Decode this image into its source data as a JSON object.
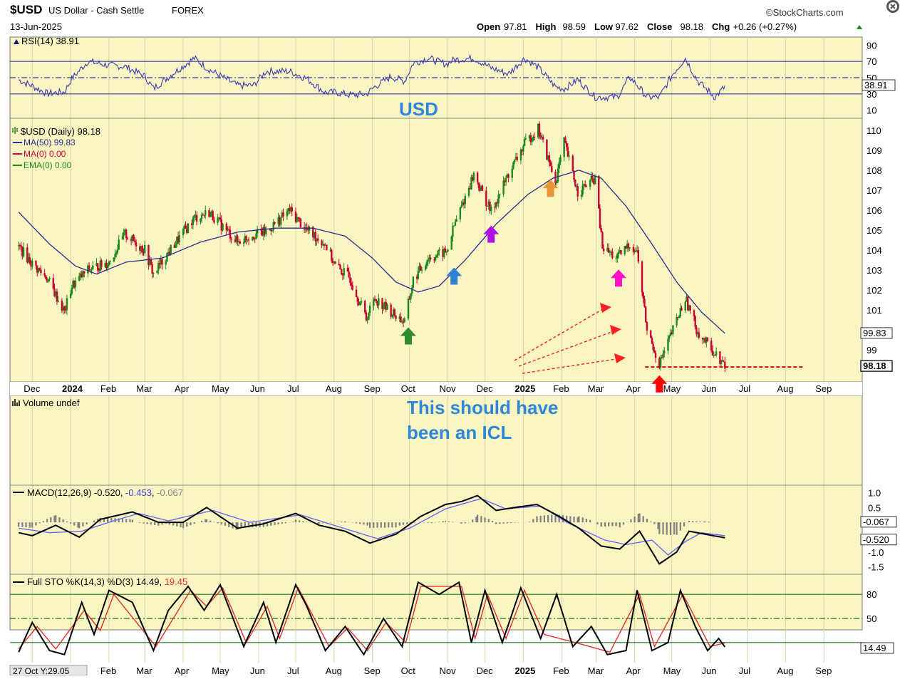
{
  "header": {
    "symbol": "$USD",
    "name": "US Dollar - Cash Settle",
    "exchange": "FOREX",
    "date": "13-Jun-2025",
    "watermark": "©StockCharts.com",
    "ohlc": [
      {
        "label": "Open",
        "value": "97.81"
      },
      {
        "label": "High",
        "value": "98.59"
      },
      {
        "label": "Low",
        "value": "97.62"
      },
      {
        "label": "Close",
        "value": "98.18"
      },
      {
        "label": "Chg",
        "value": "+0.26 (+0.27%)"
      }
    ],
    "close_icon": "close-circle-icon"
  },
  "annotations": {
    "usd_title": "USD",
    "icl_note_line1": "This should have",
    "icl_note_line2": "been an ICL",
    "arrows": [
      {
        "color": "#2e8b2e",
        "direction": "up",
        "date": "2024-09-30",
        "price": 99.7
      },
      {
        "color": "#2f80d0",
        "direction": "up",
        "date": "2024-11-06",
        "price": 102.7
      },
      {
        "color": "#b010e8",
        "direction": "up",
        "date": "2024-12-06",
        "price": 104.8
      },
      {
        "color": "#e8963a",
        "direction": "up",
        "date": "2025-01-23",
        "price": 107.1
      },
      {
        "color": "#ff10c8",
        "direction": "up",
        "date": "2025-03-19",
        "price": 102.6
      },
      {
        "color": "#ff0000",
        "direction": "up",
        "date": "2025-04-21",
        "price": 97.3
      }
    ],
    "support_line": {
      "color": "#dd0000",
      "price": 98.18,
      "from": "2025-04-21",
      "to": "2025-08-15"
    },
    "dashed_arrows_color": "#ff2020"
  },
  "colors": {
    "panel_bg": "#f9f5c3",
    "grid": "#d9d4a8",
    "up_candle": "#1a8a1a",
    "down_candle": "#cc0033",
    "ma_line": "#2b2b8f",
    "rsi_line": "#3a3ab0",
    "macd_line": "#000000",
    "signal_line": "#6060ff",
    "histogram": "#808080",
    "sto_k": "#000000",
    "sto_d": "#e03030",
    "annotation_text": "#2e86d8"
  },
  "chart_data": [
    {
      "type": "line",
      "panel": "rsi",
      "title": "RSI(14)",
      "last_value": "38.91",
      "ylim": [
        0,
        100
      ],
      "ticks": [
        "90",
        "70",
        "50",
        "30",
        "10"
      ],
      "levels": [
        70,
        50,
        30
      ],
      "tag": "38.91"
    },
    {
      "type": "candlestick",
      "panel": "price",
      "title": "$USD (Daily)",
      "last_value": "98.18",
      "ylim": [
        97.4,
        110.6
      ],
      "ticks": [
        "110",
        "109",
        "108",
        "107",
        "106",
        "105",
        "104",
        "103",
        "102",
        "101",
        "99"
      ],
      "legend": [
        {
          "name": "MA(50)",
          "value": "99.83",
          "color": "#2b2b8f"
        },
        {
          "name": "MA(0)",
          "value": "0.00",
          "color": "#cc0033"
        },
        {
          "name": "EMA(0)",
          "value": "0.00",
          "color": "#1a8a1a"
        }
      ],
      "tags": [
        "99.83",
        "98.18"
      ],
      "close_path": [
        [
          "2023-11-20",
          104.2
        ],
        [
          "2023-12-01",
          103.3
        ],
        [
          "2023-12-13",
          102.6
        ],
        [
          "2023-12-27",
          100.9
        ],
        [
          "2024-01-02",
          102.2
        ],
        [
          "2024-01-15",
          103.0
        ],
        [
          "2024-02-01",
          103.4
        ],
        [
          "2024-02-14",
          104.8
        ],
        [
          "2024-03-01",
          104.0
        ],
        [
          "2024-03-08",
          102.8
        ],
        [
          "2024-03-25",
          104.3
        ],
        [
          "2024-04-10",
          105.6
        ],
        [
          "2024-04-22",
          105.9
        ],
        [
          "2024-05-15",
          104.4
        ],
        [
          "2024-05-28",
          104.8
        ],
        [
          "2024-06-07",
          104.9
        ],
        [
          "2024-06-26",
          106.0
        ],
        [
          "2024-07-10",
          105.0
        ],
        [
          "2024-07-25",
          104.3
        ],
        [
          "2024-08-02",
          103.2
        ],
        [
          "2024-08-14",
          102.6
        ],
        [
          "2024-08-27",
          100.6
        ],
        [
          "2024-09-03",
          101.6
        ],
        [
          "2024-09-16",
          100.9
        ],
        [
          "2024-09-27",
          100.4
        ],
        [
          "2024-10-04",
          102.5
        ],
        [
          "2024-10-16",
          103.6
        ],
        [
          "2024-10-31",
          103.9
        ],
        [
          "2024-11-06",
          105.2
        ],
        [
          "2024-11-22",
          107.8
        ],
        [
          "2024-12-06",
          105.9
        ],
        [
          "2024-12-20",
          107.8
        ],
        [
          "2025-01-02",
          109.3
        ],
        [
          "2025-01-13",
          110.1
        ],
        [
          "2025-01-27",
          107.4
        ],
        [
          "2025-02-03",
          109.4
        ],
        [
          "2025-02-14",
          106.9
        ],
        [
          "2025-02-28",
          107.6
        ],
        [
          "2025-03-06",
          104.1
        ],
        [
          "2025-03-18",
          103.6
        ],
        [
          "2025-03-28",
          104.3
        ],
        [
          "2025-04-03",
          103.9
        ],
        [
          "2025-04-11",
          100.0
        ],
        [
          "2025-04-21",
          98.3
        ],
        [
          "2025-05-02",
          100.0
        ],
        [
          "2025-05-12",
          101.6
        ],
        [
          "2025-05-22",
          99.9
        ],
        [
          "2025-06-05",
          98.8
        ],
        [
          "2025-06-13",
          98.18
        ]
      ],
      "ma50_path": [
        [
          "2023-11-20",
          105.9
        ],
        [
          "2023-12-15",
          104.3
        ],
        [
          "2024-01-05",
          103.2
        ],
        [
          "2024-01-22",
          102.8
        ],
        [
          "2024-02-15",
          103.4
        ],
        [
          "2024-03-15",
          103.6
        ],
        [
          "2024-04-15",
          104.4
        ],
        [
          "2024-05-15",
          104.9
        ],
        [
          "2024-06-15",
          105.1
        ],
        [
          "2024-07-15",
          105.1
        ],
        [
          "2024-08-10",
          104.7
        ],
        [
          "2024-09-01",
          103.6
        ],
        [
          "2024-09-20",
          102.4
        ],
        [
          "2024-10-08",
          101.9
        ],
        [
          "2024-10-25",
          102.2
        ],
        [
          "2024-11-15",
          103.5
        ],
        [
          "2024-12-10",
          105.3
        ],
        [
          "2025-01-05",
          106.8
        ],
        [
          "2025-01-25",
          107.6
        ],
        [
          "2025-02-15",
          108.0
        ],
        [
          "2025-03-05",
          107.6
        ],
        [
          "2025-03-25",
          106.2
        ],
        [
          "2025-04-15",
          104.3
        ],
        [
          "2025-05-05",
          102.4
        ],
        [
          "2025-05-25",
          100.9
        ],
        [
          "2025-06-13",
          99.83
        ]
      ]
    },
    {
      "type": "bar",
      "panel": "volume",
      "title": "Volume undef"
    },
    {
      "type": "line",
      "panel": "macd",
      "title": "MACD(12,26,9)",
      "values_text": [
        "-0.520",
        "-0.453",
        "-0.067"
      ],
      "ylim": [
        -1.75,
        1.25
      ],
      "ticks": [
        "1.0",
        "0.5",
        "-1.0",
        "-1.5"
      ],
      "tags": [
        "-0.067",
        "-0.520"
      ],
      "macd_path": [
        [
          "2023-11-20",
          -0.35
        ],
        [
          "2023-12-01",
          -0.45
        ],
        [
          "2023-12-20",
          -0.1
        ],
        [
          "2024-01-08",
          -0.5
        ],
        [
          "2024-01-25",
          0.1
        ],
        [
          "2024-02-20",
          0.35
        ],
        [
          "2024-03-12",
          0.0
        ],
        [
          "2024-04-01",
          0.0
        ],
        [
          "2024-04-20",
          0.5
        ],
        [
          "2024-05-15",
          -0.2
        ],
        [
          "2024-06-05",
          -0.05
        ],
        [
          "2024-07-01",
          0.3
        ],
        [
          "2024-07-20",
          -0.1
        ],
        [
          "2024-08-10",
          -0.3
        ],
        [
          "2024-08-30",
          -0.7
        ],
        [
          "2024-09-20",
          -0.4
        ],
        [
          "2024-10-10",
          0.2
        ],
        [
          "2024-10-30",
          0.6
        ],
        [
          "2024-11-12",
          0.7
        ],
        [
          "2024-11-25",
          0.9
        ],
        [
          "2024-12-10",
          0.4
        ],
        [
          "2024-12-25",
          0.5
        ],
        [
          "2025-01-12",
          0.6
        ],
        [
          "2025-01-30",
          0.2
        ],
        [
          "2025-02-15",
          -0.2
        ],
        [
          "2025-03-05",
          -0.8
        ],
        [
          "2025-03-20",
          -0.9
        ],
        [
          "2025-04-05",
          -0.3
        ],
        [
          "2025-04-21",
          -1.4
        ],
        [
          "2025-05-05",
          -1.0
        ],
        [
          "2025-05-15",
          -0.3
        ],
        [
          "2025-05-28",
          -0.4
        ],
        [
          "2025-06-13",
          -0.52
        ]
      ],
      "signal_path": [
        [
          "2023-11-20",
          -0.2
        ],
        [
          "2023-12-15",
          -0.35
        ],
        [
          "2024-01-10",
          -0.3
        ],
        [
          "2024-02-01",
          0.0
        ],
        [
          "2024-02-25",
          0.3
        ],
        [
          "2024-03-20",
          0.05
        ],
        [
          "2024-04-25",
          0.4
        ],
        [
          "2024-05-25",
          0.0
        ],
        [
          "2024-07-05",
          0.25
        ],
        [
          "2024-08-01",
          -0.1
        ],
        [
          "2024-09-05",
          -0.55
        ],
        [
          "2024-10-01",
          -0.2
        ],
        [
          "2024-10-30",
          0.45
        ],
        [
          "2024-11-28",
          0.8
        ],
        [
          "2024-12-18",
          0.45
        ],
        [
          "2025-01-15",
          0.55
        ],
        [
          "2025-02-05",
          0.0
        ],
        [
          "2025-03-08",
          -0.6
        ],
        [
          "2025-03-25",
          -0.75
        ],
        [
          "2025-04-15",
          -0.6
        ],
        [
          "2025-04-28",
          -1.1
        ],
        [
          "2025-05-12",
          -0.65
        ],
        [
          "2025-05-25",
          -0.35
        ],
        [
          "2025-06-13",
          -0.45
        ]
      ]
    },
    {
      "type": "line",
      "panel": "sto",
      "title": "Full STO %K(14,3) %D(3)",
      "values_text": [
        "14.49",
        "19.45"
      ],
      "ylim": [
        -5,
        105
      ],
      "ticks": [
        "80",
        "50"
      ],
      "levels": [
        80,
        50,
        20
      ],
      "tag": "14.49",
      "k_path": [
        [
          "2023-11-20",
          8
        ],
        [
          "2023-12-01",
          45
        ],
        [
          "2023-12-15",
          10
        ],
        [
          "2023-12-27",
          5
        ],
        [
          "2024-01-10",
          70
        ],
        [
          "2024-01-20",
          30
        ],
        [
          "2024-02-01",
          85
        ],
        [
          "2024-02-20",
          70
        ],
        [
          "2024-03-08",
          10
        ],
        [
          "2024-03-20",
          60
        ],
        [
          "2024-04-05",
          90
        ],
        [
          "2024-04-18",
          60
        ],
        [
          "2024-05-01",
          92
        ],
        [
          "2024-05-20",
          15
        ],
        [
          "2024-06-05",
          70
        ],
        [
          "2024-06-15",
          20
        ],
        [
          "2024-07-01",
          92
        ],
        [
          "2024-07-10",
          65
        ],
        [
          "2024-07-25",
          10
        ],
        [
          "2024-08-10",
          40
        ],
        [
          "2024-08-25",
          5
        ],
        [
          "2024-09-10",
          50
        ],
        [
          "2024-09-25",
          15
        ],
        [
          "2024-10-08",
          95
        ],
        [
          "2024-10-25",
          80
        ],
        [
          "2024-11-10",
          95
        ],
        [
          "2024-11-20",
          20
        ],
        [
          "2024-12-01",
          85
        ],
        [
          "2024-12-15",
          20
        ],
        [
          "2024-12-30",
          88
        ],
        [
          "2025-01-15",
          25
        ],
        [
          "2025-01-28",
          80
        ],
        [
          "2025-02-10",
          15
        ],
        [
          "2025-02-25",
          40
        ],
        [
          "2025-03-10",
          5
        ],
        [
          "2025-03-25",
          10
        ],
        [
          "2025-04-03",
          85
        ],
        [
          "2025-04-15",
          10
        ],
        [
          "2025-04-28",
          20
        ],
        [
          "2025-05-08",
          85
        ],
        [
          "2025-05-20",
          40
        ],
        [
          "2025-05-30",
          10
        ],
        [
          "2025-06-08",
          25
        ],
        [
          "2025-06-13",
          14.49
        ]
      ],
      "d_path": [
        [
          "2023-11-20",
          12
        ],
        [
          "2023-12-05",
          40
        ],
        [
          "2023-12-20",
          12
        ],
        [
          "2024-01-12",
          60
        ],
        [
          "2024-01-25",
          35
        ],
        [
          "2024-02-05",
          80
        ],
        [
          "2024-03-10",
          15
        ],
        [
          "2024-04-07",
          85
        ],
        [
          "2024-04-20",
          65
        ],
        [
          "2024-05-03",
          88
        ],
        [
          "2024-05-22",
          20
        ],
        [
          "2024-06-08",
          65
        ],
        [
          "2024-06-18",
          25
        ],
        [
          "2024-07-03",
          88
        ],
        [
          "2024-07-28",
          15
        ],
        [
          "2024-08-12",
          38
        ],
        [
          "2024-08-28",
          10
        ],
        [
          "2024-09-12",
          45
        ],
        [
          "2024-09-28",
          20
        ],
        [
          "2024-10-10",
          90
        ],
        [
          "2024-11-12",
          90
        ],
        [
          "2024-11-23",
          25
        ],
        [
          "2024-12-03",
          80
        ],
        [
          "2024-12-18",
          25
        ],
        [
          "2025-01-02",
          85
        ],
        [
          "2025-01-18",
          30
        ],
        [
          "2025-02-12",
          20
        ],
        [
          "2025-03-12",
          8
        ],
        [
          "2025-04-05",
          80
        ],
        [
          "2025-04-17",
          15
        ],
        [
          "2025-05-10",
          80
        ],
        [
          "2025-06-01",
          15
        ],
        [
          "2025-06-13",
          19.45
        ]
      ]
    }
  ],
  "x_axis": {
    "range": [
      "2023-11-13",
      "2025-10-02"
    ],
    "ticks": [
      {
        "label": "Dec",
        "date": "2023-12-01"
      },
      {
        "label": "2024",
        "date": "2024-01-01",
        "bold": true
      },
      {
        "label": "Feb",
        "date": "2024-02-01"
      },
      {
        "label": "Mar",
        "date": "2024-03-01"
      },
      {
        "label": "Apr",
        "date": "2024-04-01"
      },
      {
        "label": "May",
        "date": "2024-05-01"
      },
      {
        "label": "Jun",
        "date": "2024-06-01"
      },
      {
        "label": "Jul",
        "date": "2024-07-01"
      },
      {
        "label": "Aug",
        "date": "2024-08-01"
      },
      {
        "label": "Sep",
        "date": "2024-09-01"
      },
      {
        "label": "Oct",
        "date": "2024-10-01"
      },
      {
        "label": "Nov",
        "date": "2024-11-01"
      },
      {
        "label": "Dec",
        "date": "2024-12-01"
      },
      {
        "label": "2025",
        "date": "2025-01-01",
        "bold": true
      },
      {
        "label": "Feb",
        "date": "2025-02-01"
      },
      {
        "label": "Mar",
        "date": "2025-03-01"
      },
      {
        "label": "Apr",
        "date": "2025-04-01"
      },
      {
        "label": "May",
        "date": "2025-05-01"
      },
      {
        "label": "Jun",
        "date": "2025-06-01"
      },
      {
        "label": "Jul",
        "date": "2025-07-01"
      },
      {
        "label": "Aug",
        "date": "2025-08-01"
      },
      {
        "label": "Sep",
        "date": "2025-09-01"
      }
    ],
    "bottom_cursor_label": "27 Oct Y:29.05"
  }
}
